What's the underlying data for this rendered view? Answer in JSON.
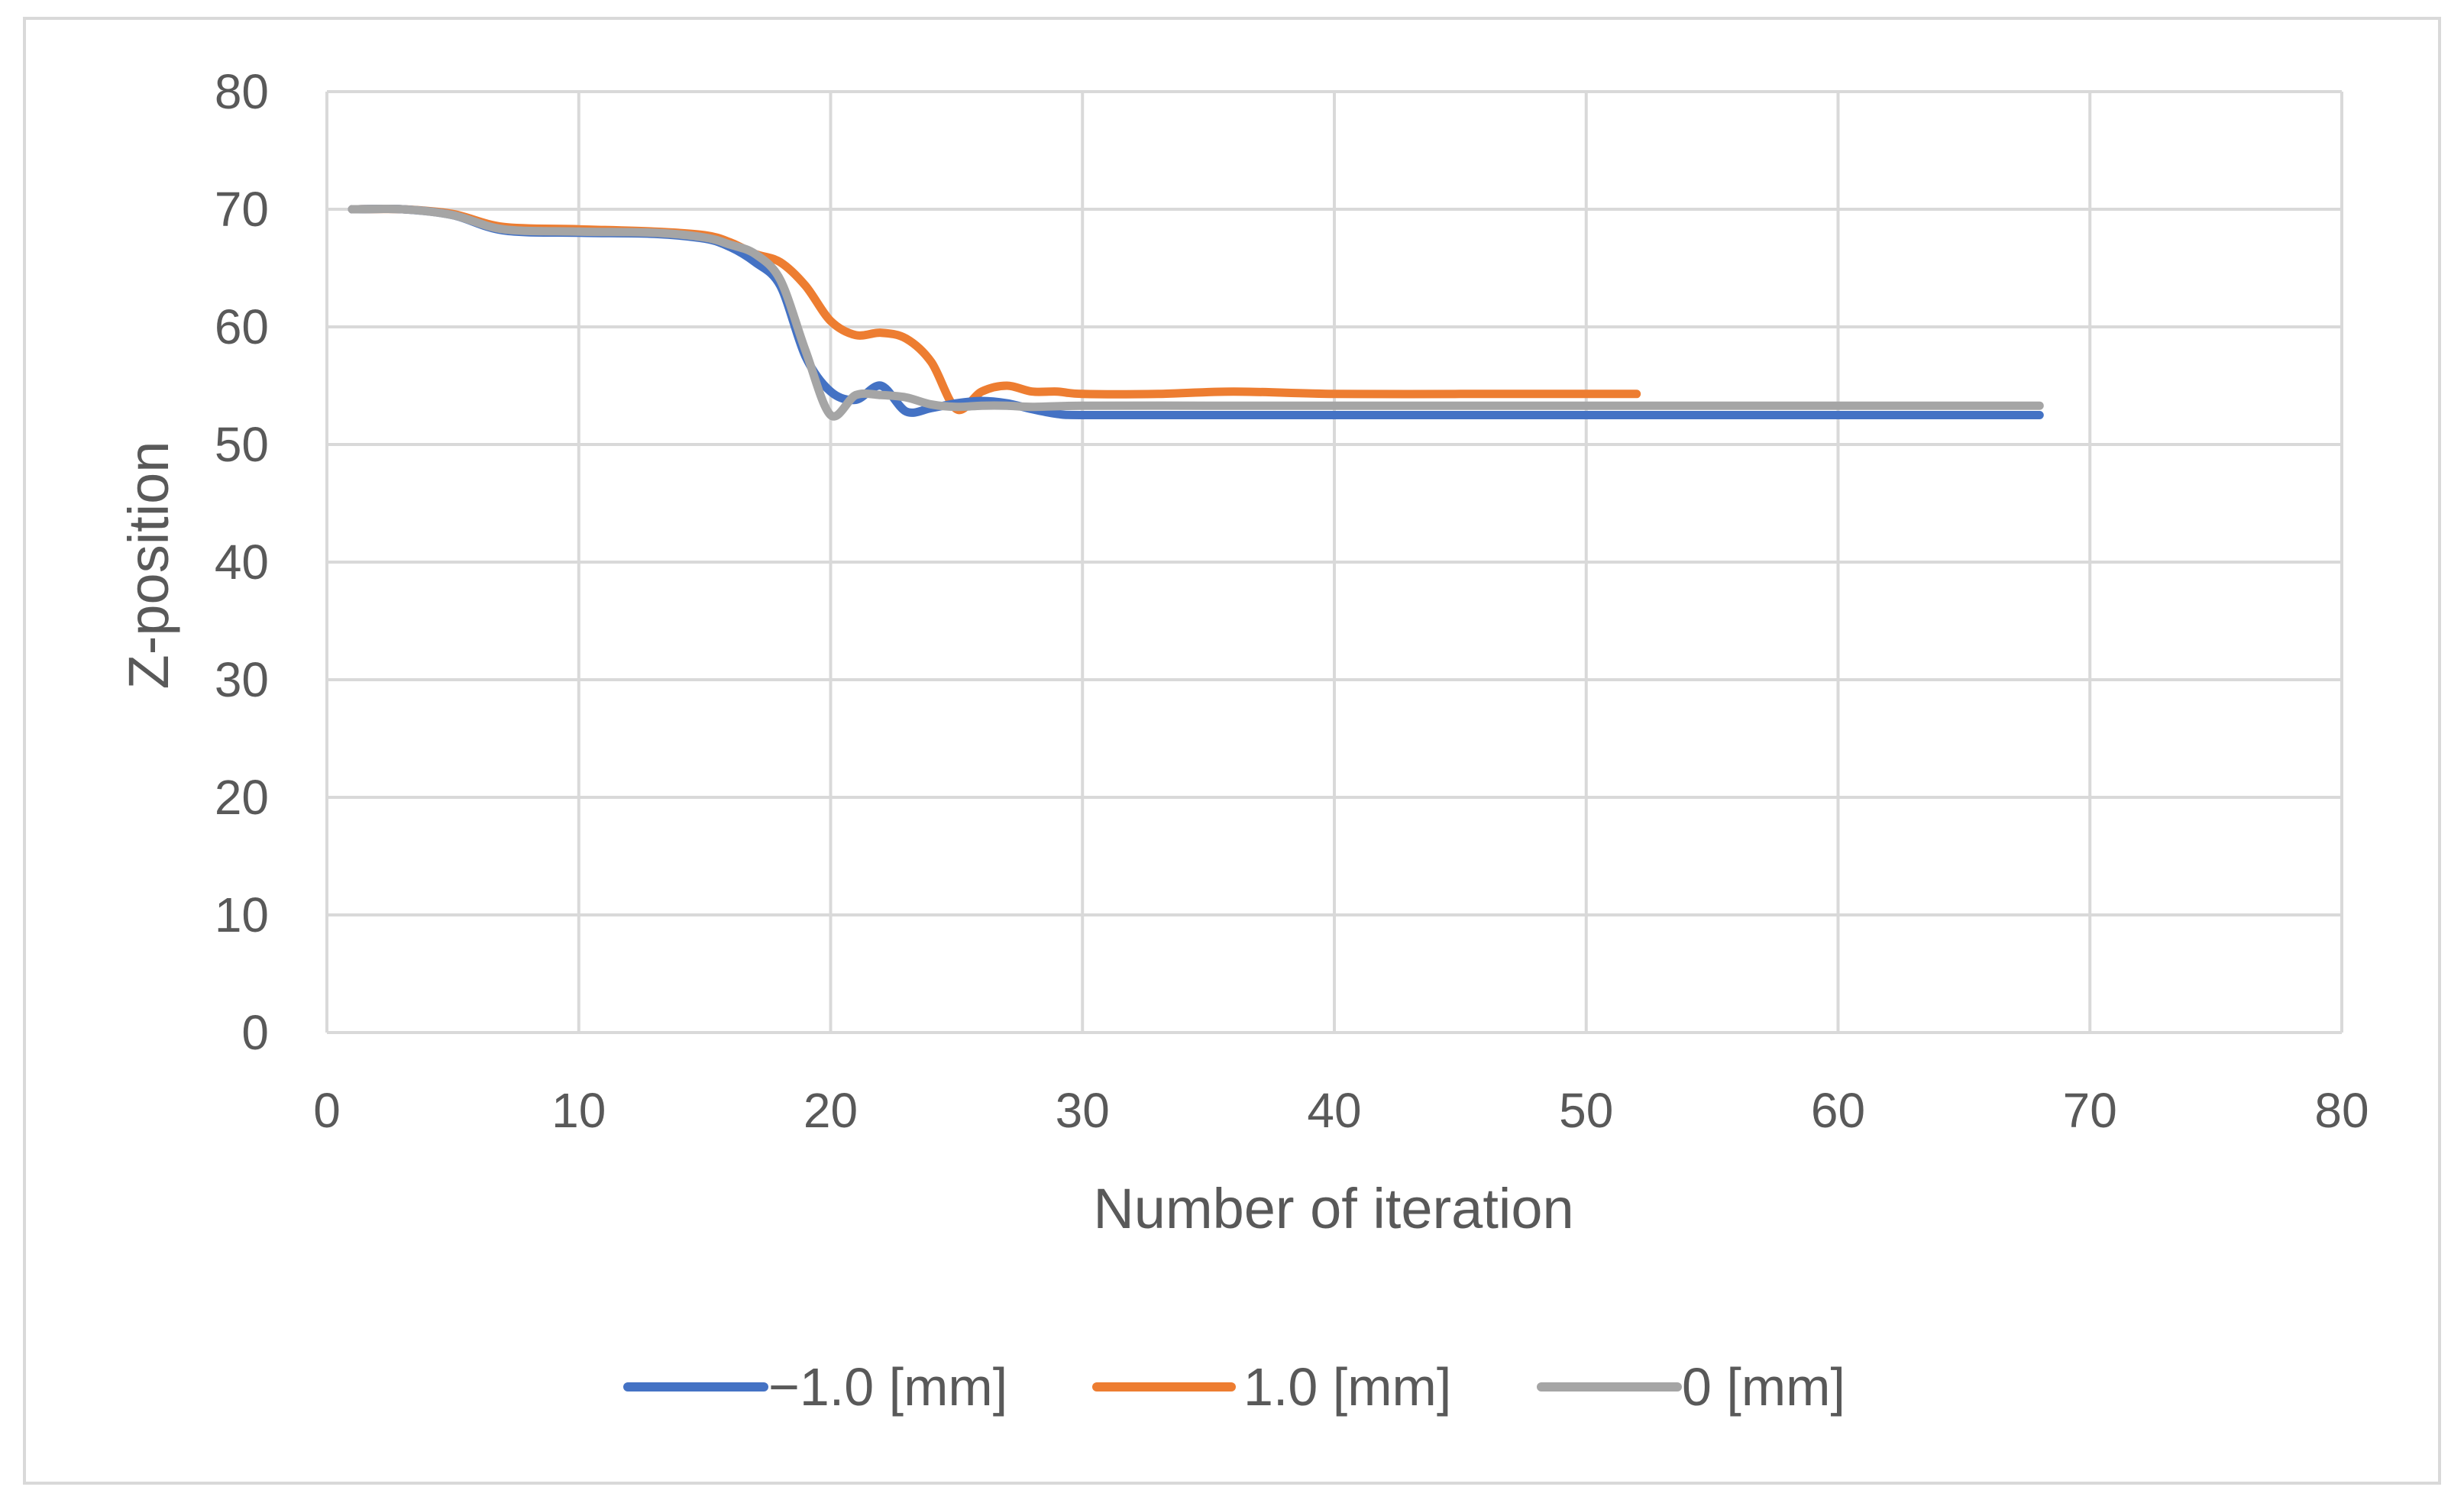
{
  "chart_data": {
    "type": "line",
    "title": "",
    "xlabel": "Number of iteration",
    "ylabel": "Z-position",
    "xlim": [
      0,
      80
    ],
    "ylim": [
      0,
      80
    ],
    "x_ticks": [
      0,
      10,
      20,
      30,
      40,
      50,
      60,
      70,
      80
    ],
    "y_ticks": [
      0,
      10,
      20,
      30,
      40,
      50,
      60,
      70,
      80
    ],
    "grid": true,
    "legend_position": "bottom",
    "series": [
      {
        "name": "−1.0 [mm]",
        "color": "#4472c4",
        "x": [
          1,
          3,
          5,
          7,
          10,
          13,
          15,
          16,
          17,
          18,
          19,
          20,
          21,
          22,
          23,
          24,
          25,
          26,
          27,
          28,
          29,
          30,
          35,
          40,
          45,
          50,
          55,
          60,
          65,
          68
        ],
        "y": [
          70,
          70,
          69.5,
          68.2,
          68,
          67.9,
          67.5,
          66.8,
          65.5,
          63.5,
          57.5,
          54.5,
          53.8,
          55,
          52.8,
          53.1,
          53.5,
          53.7,
          53.5,
          53,
          52.6,
          52.5,
          52.5,
          52.5,
          52.5,
          52.5,
          52.5,
          52.5,
          52.5,
          52.5
        ]
      },
      {
        "name": "1.0 [mm]",
        "color": "#ed7d31",
        "x": [
          1,
          3,
          5,
          7,
          10,
          13,
          15,
          16,
          17,
          18,
          19,
          20,
          21,
          22,
          23,
          24,
          25,
          26,
          27,
          28,
          29,
          30,
          33,
          36,
          40,
          45,
          50,
          52
        ],
        "y": [
          70,
          70,
          69.6,
          68.5,
          68.3,
          68.1,
          67.8,
          67.2,
          66.2,
          65.5,
          63.5,
          60.5,
          59.3,
          59.5,
          59,
          57,
          53,
          54.5,
          55,
          54.5,
          54.5,
          54.3,
          54.3,
          54.5,
          54.3,
          54.3,
          54.3,
          54.3
        ]
      },
      {
        "name": "0 [mm]",
        "color": "#a5a5a5",
        "x": [
          1,
          3,
          5,
          7,
          10,
          13,
          15,
          16,
          17,
          18,
          19,
          20,
          21,
          22,
          23,
          24,
          25,
          26,
          27,
          28,
          30,
          35,
          40,
          45,
          50,
          55,
          60,
          65,
          68
        ],
        "y": [
          70,
          70,
          69.5,
          68.3,
          68.1,
          68,
          67.6,
          67,
          66.2,
          64,
          58,
          52.5,
          54.2,
          54.2,
          54,
          53.4,
          53.2,
          53.3,
          53.3,
          53.2,
          53.3,
          53.3,
          53.3,
          53.3,
          53.3,
          53.3,
          53.3,
          53.3,
          53.3
        ]
      }
    ]
  }
}
